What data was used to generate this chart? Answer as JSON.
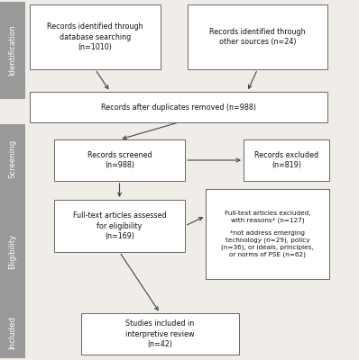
{
  "bg_color": "#f0ede8",
  "box_color": "#ffffff",
  "box_edge_color": "#666666",
  "sidebar_color": "#999999",
  "sidebar_text_color": "#ffffff",
  "text_color": "#111111",
  "arrow_color": "#444444",
  "sidebar_labels": [
    "Identification",
    "Screening",
    "Eligibility",
    "Included"
  ],
  "font_size": 5.8,
  "sidebar_font_size": 6.2
}
